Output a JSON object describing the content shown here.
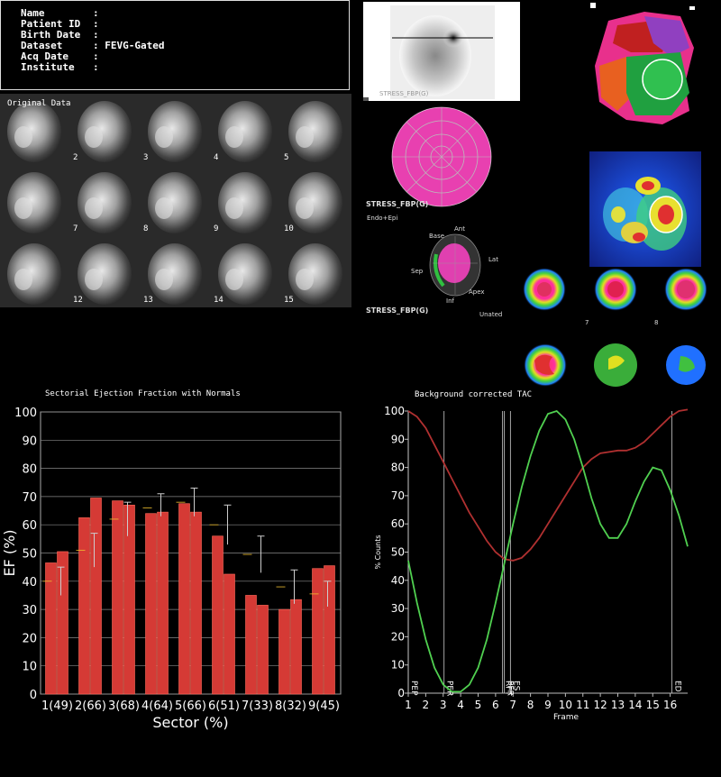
{
  "patient_info": [
    {
      "label": "Name",
      "value": ""
    },
    {
      "label": "Patient ID",
      "value": ""
    },
    {
      "label": "Birth Date",
      "value": ""
    },
    {
      "label": "Dataset",
      "value": "FEVG-Gated"
    },
    {
      "label": "Acq Date",
      "value": ""
    },
    {
      "label": "Institute",
      "value": ""
    }
  ],
  "original_data": {
    "label": "Original Data",
    "frame_numbers": [
      "",
      "2",
      "3",
      "4",
      "5",
      "",
      "7",
      "8",
      "9",
      "10",
      "",
      "12",
      "13",
      "14",
      "15"
    ]
  },
  "planar_image": {
    "label": "STRESS_FBP(G)"
  },
  "polar_map": {
    "label": "STRESS_FBP(G)"
  },
  "surface_3d": {
    "header": "Endo+Epi",
    "label": "STRESS_FBP(G)",
    "labels": {
      "base": "Base",
      "ant": "Ant",
      "lat": "Lat",
      "sep": "Sep",
      "apex": "Apex",
      "inf": "Inf",
      "unated": "Unated"
    }
  },
  "slice_numbers": {
    "a": "7",
    "b": "8"
  },
  "colors": {
    "bar": "#d53a35",
    "bar_edge": "#ff6a5a",
    "normal_marker": "#f0c030",
    "tac_red": "#b03030",
    "tac_green": "#50d050",
    "grid": "#888888",
    "pink": "#e840b0"
  },
  "chart_data": [
    {
      "type": "bar",
      "title": "Sectorial Ejection Fraction with Normals",
      "xlabel": "Sector  (%)",
      "ylabel": "EF (%)",
      "ylim": [
        0,
        100
      ],
      "yticks": [
        "0",
        "10",
        "20",
        "30",
        "40",
        "50",
        "60",
        "70",
        "80",
        "90",
        "100"
      ],
      "categories": [
        "1(49)",
        "2(66)",
        "3(68)",
        "4(64)",
        "5(66)",
        "6(51)",
        "7(33)",
        "8(32)",
        "9(45)"
      ],
      "series": [
        {
          "values": [
            46.5,
            62.5,
            68.5,
            64,
            67.5,
            56,
            35,
            30,
            44.5
          ]
        },
        {
          "values": [
            50.5,
            69.5,
            67,
            64.5,
            64.5,
            42.5,
            31.5,
            33.5,
            45.5
          ]
        }
      ],
      "normals": [
        {
          "mean": 40,
          "low": 35,
          "high": 45
        },
        {
          "mean": 51,
          "low": 45,
          "high": 57
        },
        {
          "mean": 62,
          "low": 56,
          "high": 68
        },
        {
          "mean": 66,
          "low": 63,
          "high": 71
        },
        {
          "mean": 68,
          "low": 63,
          "high": 73
        },
        {
          "mean": 60,
          "low": 53,
          "high": 67
        },
        {
          "mean": 49.5,
          "low": 43,
          "high": 56
        },
        {
          "mean": 38,
          "low": 32,
          "high": 44
        },
        {
          "mean": 35.5,
          "low": 31,
          "high": 40
        }
      ],
      "grid": true
    },
    {
      "type": "line",
      "title": "Background corrected TAC",
      "xlabel": "Frame",
      "ylabel": "% Counts",
      "xlim": [
        1,
        17
      ],
      "ylim": [
        0,
        100
      ],
      "xticks": [
        "1",
        "2",
        "3",
        "4",
        "5",
        "6",
        "7",
        "8",
        "9",
        "10",
        "11",
        "12",
        "13",
        "14",
        "15",
        "16"
      ],
      "yticks": [
        "0",
        "10",
        "20",
        "30",
        "40",
        "50",
        "60",
        "70",
        "80",
        "90",
        "100"
      ],
      "series": [
        {
          "color": "red",
          "x": [
            1,
            1.5,
            2,
            2.5,
            3,
            3.5,
            4,
            4.5,
            5,
            5.5,
            6,
            6.5,
            7,
            7.5,
            8,
            8.5,
            9,
            9.5,
            10,
            10.5,
            11,
            11.5,
            12,
            12.5,
            13,
            13.5,
            14,
            14.5,
            15,
            15.5,
            16,
            16.5,
            17
          ],
          "y": [
            100,
            98,
            94,
            88,
            82,
            76,
            70,
            64,
            59,
            54,
            50,
            47.5,
            47,
            48,
            51,
            55,
            60,
            65,
            70,
            75,
            80,
            83,
            85,
            85.5,
            86,
            86,
            87,
            89,
            92,
            95,
            98,
            100,
            100.5
          ]
        },
        {
          "color": "green",
          "x": [
            1,
            1.5,
            2,
            2.5,
            3,
            3.5,
            4,
            4.5,
            5,
            5.5,
            6,
            6.5,
            7,
            7.5,
            8,
            8.5,
            9,
            9.5,
            10,
            10.5,
            11,
            11.5,
            12,
            12.5,
            13,
            13.5,
            14,
            14.5,
            15,
            15.5,
            16,
            16.5,
            17
          ],
          "y": [
            47,
            32,
            19,
            9,
            3,
            0.5,
            0.5,
            3,
            9,
            19,
            32,
            46,
            60,
            73,
            84,
            93,
            99,
            100,
            97,
            90,
            80,
            69,
            60,
            55,
            55,
            60,
            68,
            75,
            80,
            79,
            72,
            63,
            52
          ]
        }
      ],
      "markers": [
        {
          "label": "PEP",
          "x": 1
        },
        {
          "label": "PER",
          "x": 3.05
        },
        {
          "label": "RFT",
          "x": 6.4
        },
        {
          "label": "PFR",
          "x": 6.5
        },
        {
          "label": "ES",
          "x": 6.85
        },
        {
          "label": "ED",
          "x": 16.1
        }
      ],
      "grid": false
    }
  ]
}
